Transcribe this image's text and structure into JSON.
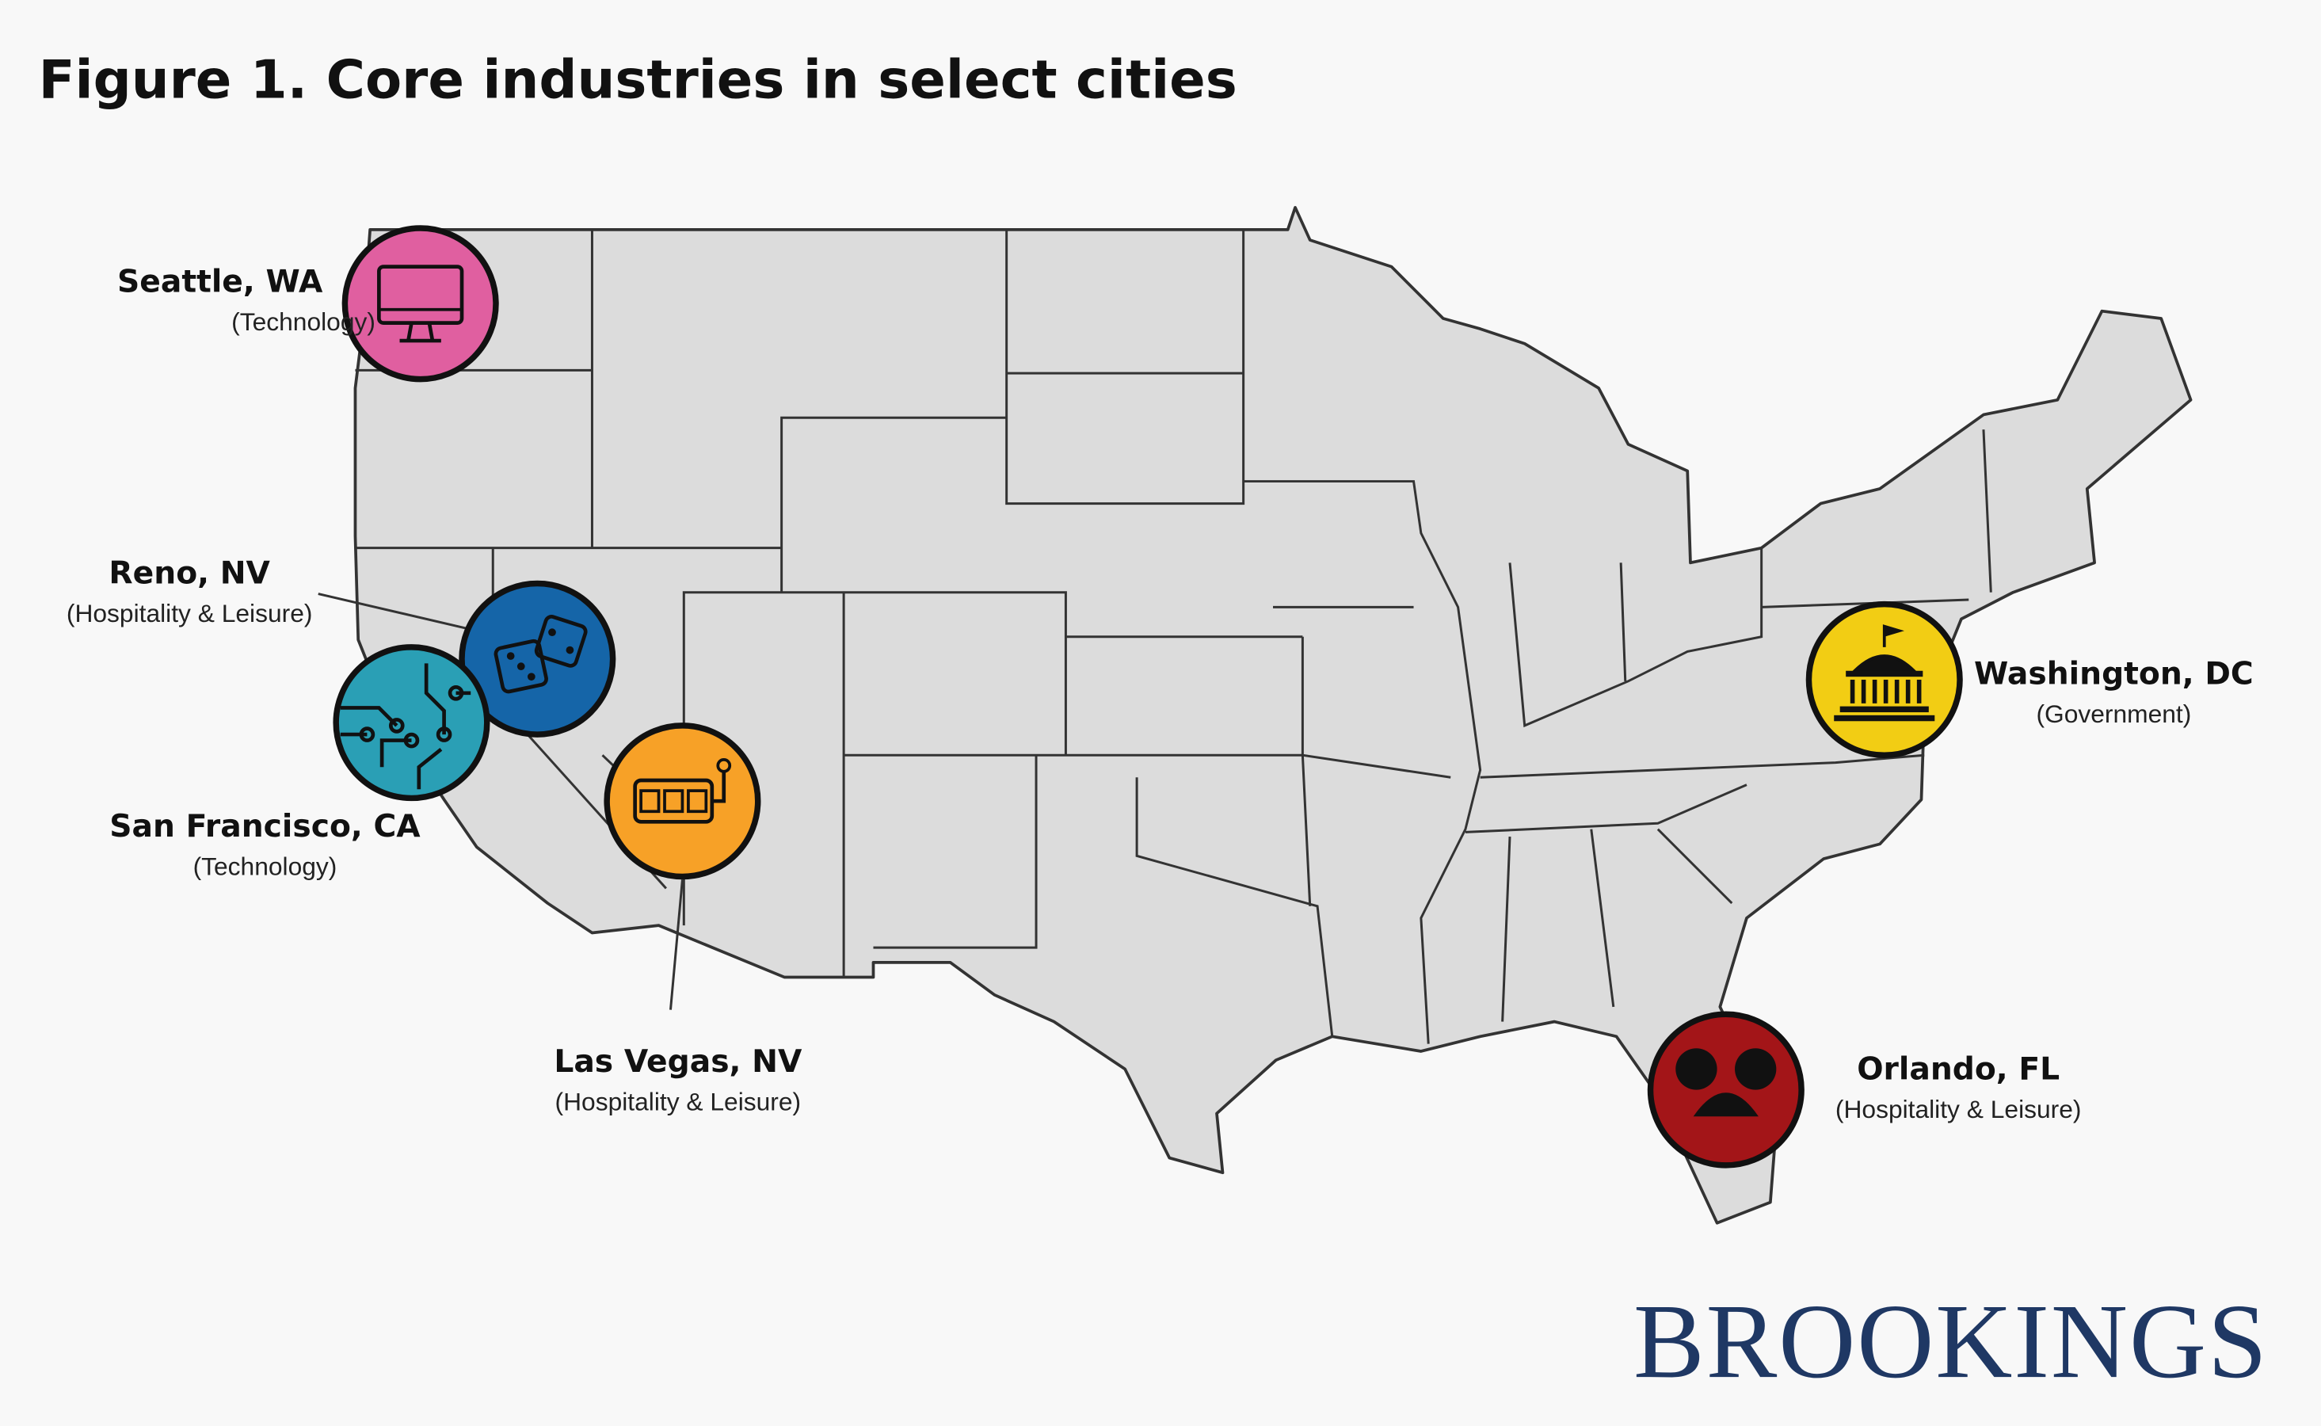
{
  "title": "Figure 1. Core industries in select cities",
  "cities": [
    {
      "name": "Seattle, WA",
      "industry": "(Technology)",
      "color": "#e05fa0"
    },
    {
      "name": "Reno, NV",
      "industry": "(Hospitality & Leisure)",
      "color": "#1565a8"
    },
    {
      "name": "San Francisco, CA",
      "industry": "(Technology)",
      "color": "#2a9fb5"
    },
    {
      "name": "Las Vegas, NV",
      "industry": "(Hospitality & Leisure)",
      "color": "#f7a127"
    },
    {
      "name": "Washington, DC",
      "industry": "(Government)",
      "color": "#f2cd14"
    },
    {
      "name": "Orlando, FL",
      "industry": "(Hospitality & Leisure)",
      "color": "#a31518"
    }
  ],
  "logo": "BROOKINGS"
}
